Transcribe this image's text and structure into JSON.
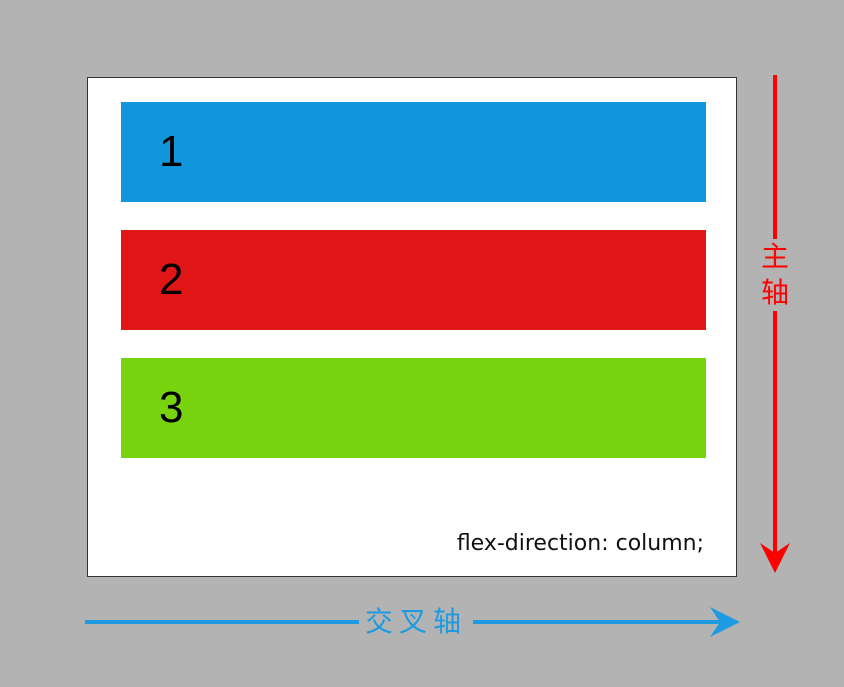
{
  "flex_items": [
    {
      "label": "1",
      "color": "#1296db"
    },
    {
      "label": "2",
      "color": "#e01515"
    },
    {
      "label": "3",
      "color": "#78d30f"
    }
  ],
  "code_label": "flex-direction: column;",
  "main_axis": {
    "label": "主轴",
    "color": "#ff0000",
    "direction": "down"
  },
  "cross_axis": {
    "label": "交叉轴",
    "color": "#1e9be0",
    "direction": "right"
  },
  "colors": {
    "background": "#b3b3b3",
    "container": "#ffffff",
    "container_border": "#333333"
  }
}
